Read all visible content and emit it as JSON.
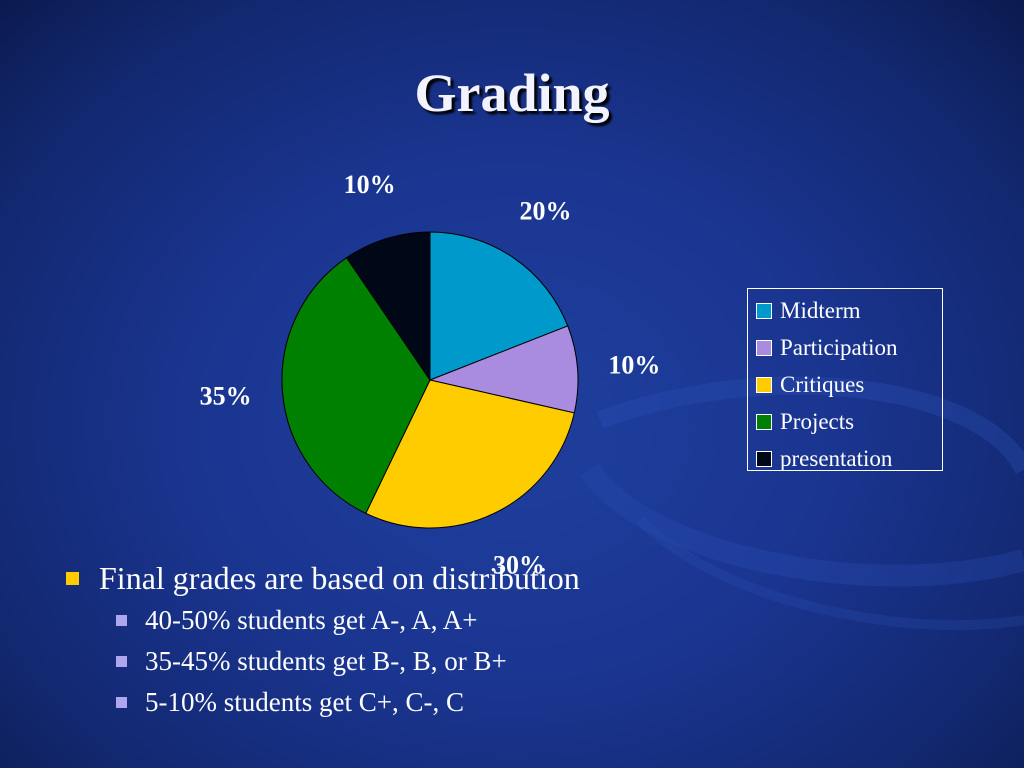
{
  "slide": {
    "title": "Grading",
    "bullets": {
      "main": "Final grades are based on distribution",
      "sub": [
        "40-50% students get A-, A, A+",
        "35-45% students get B-, B, or B+",
        "5-10% students get C+, C-, C"
      ]
    }
  },
  "chart_data": {
    "type": "pie",
    "title": "",
    "legend_position": "right",
    "categories": [
      "Midterm",
      "Participation",
      "Critiques",
      "Projects",
      "presentation"
    ],
    "values": [
      20,
      10,
      30,
      35,
      10
    ],
    "data_labels": [
      "20%",
      "10%",
      "30%",
      "35%",
      "10%"
    ],
    "colors": [
      "#0099cc",
      "#a98be0",
      "#ffcc00",
      "#008000",
      "#000818"
    ]
  }
}
